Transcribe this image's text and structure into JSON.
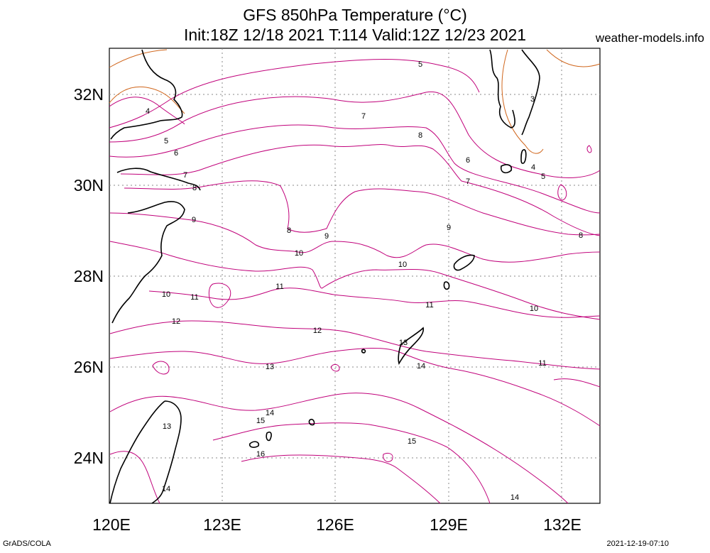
{
  "title_line1": "GFS 850hPa Temperature (°C)",
  "title_line2": "Init:18Z 12/18 2021 T:114 Valid:12Z 12/23 2021",
  "site": "weather-models.info",
  "credit": "GrADS/COLA",
  "timestamp": "2021-12-19-07:10",
  "map": {
    "lon_ticks": [
      "120E",
      "123E",
      "126E",
      "129E",
      "132E"
    ],
    "lat_ticks": [
      "32N",
      "30N",
      "28N",
      "26N",
      "24N"
    ],
    "grid": "dotted"
  },
  "contour_labels": {
    "c3": "3",
    "c4a": "4",
    "c4b": "4",
    "c5a": "5",
    "c5b": "5",
    "c5c": "5",
    "c6a": "6",
    "c6b": "6",
    "c7a": "7",
    "c7b": "7",
    "c7c": "7",
    "c8a": "8",
    "c8b": "8",
    "c8c": "8",
    "c8d": "8",
    "c9a": "9",
    "c9b": "9",
    "c9c": "9",
    "c10a": "10",
    "c10b": "10",
    "c10c": "10",
    "c10d": "10",
    "c11a": "11",
    "c11b": "11",
    "c11c": "11",
    "c11d": "11",
    "c12a": "12",
    "c12b": "12",
    "c13a": "13",
    "c13b": "13",
    "c13c": "13",
    "c14a": "14",
    "c14b": "14",
    "c14c": "14",
    "c14d": "14",
    "c15a": "15",
    "c15b": "15",
    "c16": "16"
  },
  "colors": {
    "contour": "#c0007a",
    "warm_contour": "#d0661c",
    "coast": "#000000",
    "grid": "#888888"
  }
}
